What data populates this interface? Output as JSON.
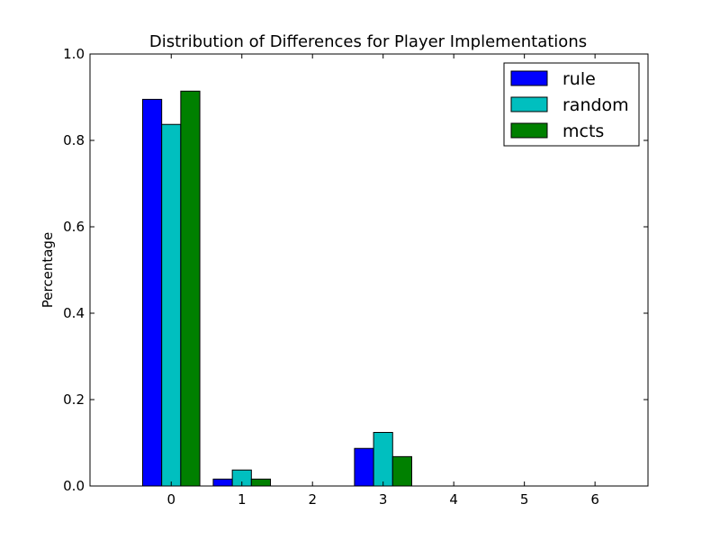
{
  "chart_data": {
    "type": "bar",
    "title": "Distribution of Differences for Player Implementations",
    "xlabel": "",
    "ylabel": "Percentage",
    "categories": [
      "0",
      "1",
      "2",
      "3",
      "4",
      "5",
      "6"
    ],
    "series": [
      {
        "name": "rule",
        "color": "#0000ff",
        "values": [
          0.895,
          0.016,
          0.0,
          0.087,
          0.0,
          0.0,
          0.0
        ]
      },
      {
        "name": "random",
        "color": "#00bfbf",
        "values": [
          0.837,
          0.037,
          0.0,
          0.124,
          0.0,
          0.0,
          0.0
        ]
      },
      {
        "name": "mcts",
        "color": "#008000",
        "values": [
          0.914,
          0.016,
          0.0,
          0.068,
          0.0,
          0.0,
          0.0
        ]
      }
    ],
    "xlim": [
      -1.15,
      6.75
    ],
    "ylim": [
      0.0,
      1.0
    ],
    "yticks": [
      "0.0",
      "0.2",
      "0.4",
      "0.6",
      "0.8",
      "1.0"
    ],
    "grid": false,
    "legend_position": "top-right"
  }
}
